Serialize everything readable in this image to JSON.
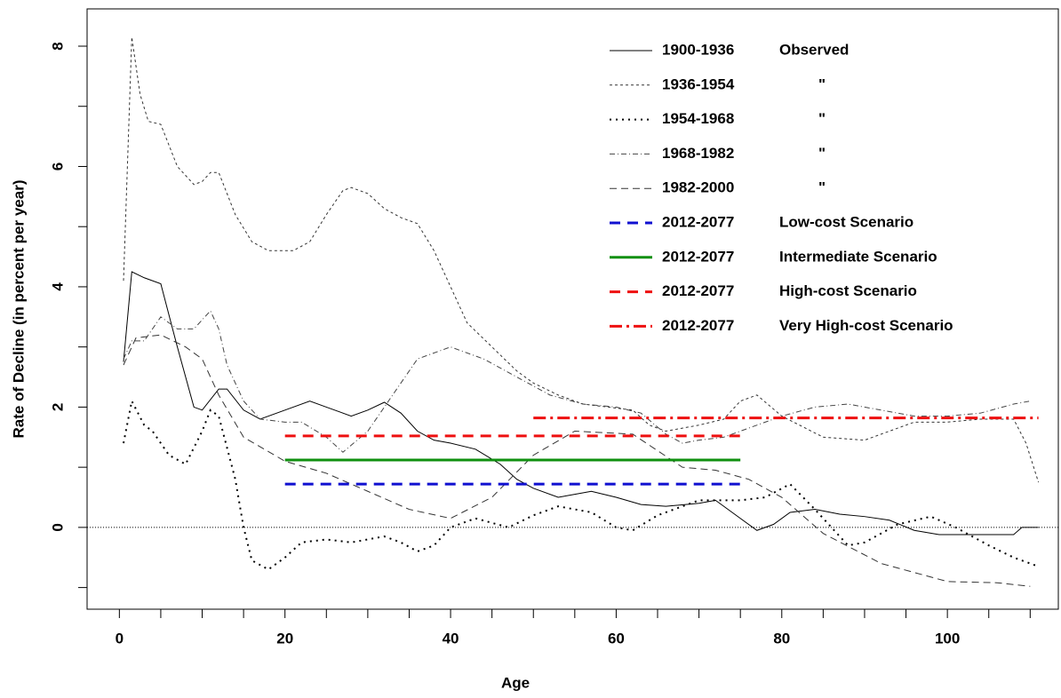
{
  "chart_data": {
    "type": "line",
    "x_label": "Age",
    "y_label": "Rate of Decline (in percent per year)",
    "xlim": [
      -3.9,
      113.4
    ],
    "ylim": [
      -1.36,
      8.62
    ],
    "xticks": [
      0,
      20,
      40,
      60,
      80,
      100
    ],
    "x_minor_ticks": [
      5,
      10,
      15,
      25,
      30,
      35,
      45,
      50,
      55,
      65,
      70,
      75,
      85,
      90,
      95,
      105,
      110
    ],
    "yticks": [
      0,
      2,
      4,
      6,
      8
    ],
    "y_minor_ticks": [
      -1,
      1,
      3,
      5,
      7
    ],
    "reference_line": 0,
    "legend": "top-right",
    "series": [
      {
        "name": "1900-1936",
        "note": "Observed",
        "color": "#000000",
        "dash": "none",
        "width": 1,
        "x": [
          0.5,
          1.5,
          3,
          5,
          7,
          9,
          10,
          12,
          13,
          15,
          17,
          20,
          23,
          25,
          28,
          30,
          32,
          34,
          36,
          38,
          40,
          43,
          46,
          48,
          50,
          53,
          55,
          57,
          60,
          63,
          66,
          70,
          72,
          75,
          77,
          79,
          81,
          84,
          87,
          90,
          93,
          96,
          99,
          102,
          105,
          108,
          109,
          111
        ],
        "values": [
          2.75,
          4.25,
          4.15,
          4.05,
          3.0,
          2.0,
          1.95,
          2.3,
          2.3,
          1.95,
          1.8,
          1.95,
          2.1,
          2.0,
          1.85,
          1.95,
          2.08,
          1.9,
          1.6,
          1.45,
          1.4,
          1.3,
          1.05,
          0.8,
          0.65,
          0.5,
          0.55,
          0.6,
          0.5,
          0.38,
          0.35,
          0.4,
          0.45,
          0.15,
          -0.05,
          0.05,
          0.25,
          0.3,
          0.22,
          0.18,
          0.12,
          -0.05,
          -0.12,
          -0.12,
          -0.12,
          -0.12,
          0.0,
          0.0
        ]
      },
      {
        "name": "1936-1954",
        "note": "\"",
        "color": "#333333",
        "dash": "3,3",
        "width": 1,
        "x": [
          0.5,
          1.5,
          2.5,
          3.5,
          5,
          7,
          9,
          10,
          11,
          12,
          14,
          16,
          18,
          21,
          23,
          25,
          27,
          28,
          30,
          32,
          34,
          36,
          38,
          40,
          42,
          45,
          48,
          50,
          53,
          56,
          59,
          62,
          64,
          66,
          68,
          70,
          73,
          75,
          77,
          80,
          85,
          90,
          96,
          100,
          104,
          108,
          109.5,
          111
        ],
        "values": [
          4.1,
          8.15,
          7.2,
          6.75,
          6.7,
          6.0,
          5.7,
          5.75,
          5.9,
          5.9,
          5.2,
          4.75,
          4.6,
          4.6,
          4.75,
          5.2,
          5.6,
          5.65,
          5.55,
          5.3,
          5.15,
          5.05,
          4.6,
          4.0,
          3.4,
          3.0,
          2.6,
          2.4,
          2.2,
          2.05,
          2.0,
          1.95,
          1.7,
          1.6,
          1.65,
          1.7,
          1.8,
          2.1,
          2.2,
          1.85,
          1.5,
          1.45,
          1.75,
          1.75,
          1.8,
          1.8,
          1.4,
          0.75
        ]
      },
      {
        "name": "1954-1968",
        "note": "\"",
        "color": "#000000",
        "dash": "2,5",
        "width": 2,
        "x": [
          0.5,
          1.5,
          3,
          4,
          6,
          8,
          10,
          11,
          12,
          14,
          15,
          16,
          18,
          20,
          22,
          25,
          28,
          32,
          34,
          36,
          38,
          40,
          43,
          47,
          50,
          53,
          57,
          60,
          62,
          65,
          70,
          75,
          78,
          81,
          84,
          88,
          90,
          94,
          98,
          101,
          105,
          108,
          111
        ],
        "values": [
          1.4,
          2.1,
          1.7,
          1.6,
          1.2,
          1.05,
          1.6,
          1.95,
          1.85,
          0.8,
          0.0,
          -0.55,
          -0.7,
          -0.5,
          -0.25,
          -0.2,
          -0.25,
          -0.15,
          -0.25,
          -0.4,
          -0.3,
          0.0,
          0.15,
          0.0,
          0.2,
          0.35,
          0.25,
          0.0,
          -0.05,
          0.2,
          0.45,
          0.45,
          0.5,
          0.72,
          0.3,
          -0.3,
          -0.25,
          0.05,
          0.18,
          0.0,
          -0.3,
          -0.5,
          -0.65
        ]
      },
      {
        "name": "1968-1982",
        "note": "\"",
        "color": "#444444",
        "dash": "6,3,1,3",
        "width": 1,
        "x": [
          0.5,
          1.5,
          3,
          5,
          7,
          9,
          11,
          12,
          13,
          15,
          17,
          20,
          22,
          25,
          27,
          30,
          33,
          36,
          40,
          44,
          48,
          52,
          56,
          60,
          63,
          66,
          68,
          70,
          73,
          76,
          80,
          84,
          88,
          92,
          96,
          100,
          104,
          108,
          110
        ],
        "values": [
          2.8,
          3.1,
          3.1,
          3.5,
          3.3,
          3.3,
          3.6,
          3.3,
          2.7,
          2.1,
          1.8,
          1.75,
          1.75,
          1.5,
          1.25,
          1.6,
          2.2,
          2.8,
          3.0,
          2.8,
          2.5,
          2.2,
          2.05,
          2.0,
          1.9,
          1.55,
          1.4,
          1.45,
          1.5,
          1.65,
          1.85,
          2.0,
          2.05,
          1.95,
          1.85,
          1.85,
          1.9,
          2.05,
          2.1
        ]
      },
      {
        "name": "1982-2000",
        "note": "\"",
        "color": "#333333",
        "dash": "8,5",
        "width": 1,
        "x": [
          0.5,
          2,
          5,
          8,
          10,
          12,
          15,
          20,
          25,
          30,
          35,
          40,
          45,
          50,
          55,
          62,
          68,
          72,
          76,
          80,
          85,
          92,
          100,
          106,
          110
        ],
        "values": [
          2.7,
          3.15,
          3.2,
          3.0,
          2.8,
          2.2,
          1.5,
          1.1,
          0.9,
          0.6,
          0.3,
          0.15,
          0.5,
          1.2,
          1.6,
          1.55,
          1.0,
          0.95,
          0.8,
          0.5,
          -0.1,
          -0.6,
          -0.9,
          -0.92,
          -0.98
        ]
      },
      {
        "name": "2012-2077",
        "note": "Low-cost Scenario",
        "color": "#1010d0",
        "dash": "12,8",
        "width": 3,
        "x": [
          20,
          75
        ],
        "values": [
          0.72,
          0.72
        ]
      },
      {
        "name": "2012-2077",
        "note": "Intermediate Scenario",
        "color": "#109010",
        "dash": "none",
        "width": 3,
        "x": [
          20,
          75
        ],
        "values": [
          1.12,
          1.12
        ]
      },
      {
        "name": "2012-2077",
        "note": "High-cost Scenario",
        "color": "#ee1010",
        "dash": "12,8",
        "width": 3,
        "x": [
          20,
          75
        ],
        "values": [
          1.52,
          1.52
        ]
      },
      {
        "name": "2012-2077",
        "note": "Very High-cost Scenario",
        "color": "#ee1010",
        "dash": "14,5,3,5",
        "width": 3,
        "x": [
          50,
          111
        ],
        "values": [
          1.82,
          1.82
        ]
      }
    ]
  }
}
